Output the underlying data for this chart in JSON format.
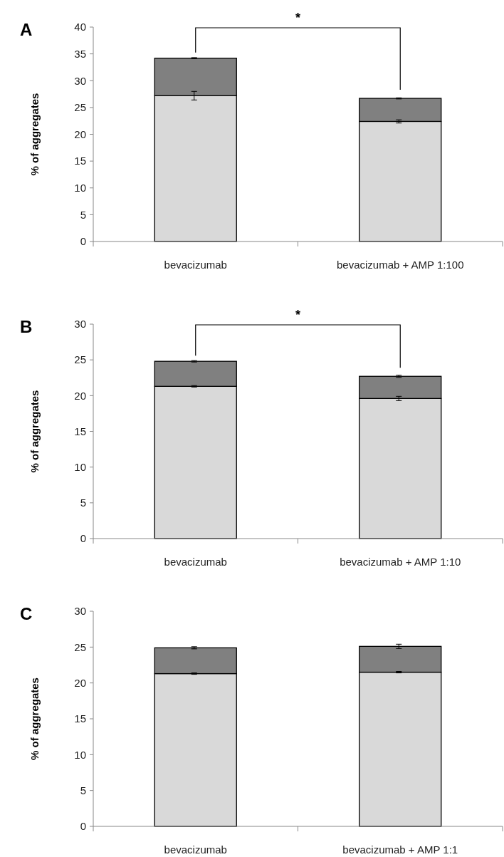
{
  "chart_data": [
    {
      "type": "bar",
      "title": "A",
      "ylabel": "% of aggregates",
      "categories": [
        "bevacizumab",
        "bevacizumab + AMP 1:100"
      ],
      "stacked": true,
      "ylim": [
        0,
        40
      ],
      "yticks": [
        0,
        5,
        10,
        15,
        20,
        25,
        30,
        35,
        40
      ],
      "grid": false,
      "annotations": [
        "*"
      ],
      "series": [
        {
          "color": "#d9d9d9",
          "values": [
            27.2,
            22.4
          ],
          "errors": [
            0.8,
            0.3
          ]
        },
        {
          "color": "#808080",
          "values": [
            7.0,
            4.3
          ],
          "errors": [
            0.1,
            0.1
          ]
        }
      ]
    },
    {
      "type": "bar",
      "title": "B",
      "ylabel": "% of aggregates",
      "categories": [
        "bevacizumab",
        "bevacizumab + AMP 1:10"
      ],
      "stacked": true,
      "ylim": [
        0,
        30
      ],
      "yticks": [
        0,
        5,
        10,
        15,
        20,
        25,
        30
      ],
      "grid": false,
      "annotations": [
        "*"
      ],
      "series": [
        {
          "color": "#d9d9d9",
          "values": [
            21.3,
            19.6
          ],
          "errors": [
            0.1,
            0.3
          ]
        },
        {
          "color": "#808080",
          "values": [
            3.5,
            3.1
          ],
          "errors": [
            0.1,
            0.15
          ]
        }
      ]
    },
    {
      "type": "bar",
      "title": "C",
      "ylabel": "% of aggregates",
      "categories": [
        "bevacizumab",
        "bevacizumab + AMP 1:1"
      ],
      "stacked": true,
      "ylim": [
        0,
        30
      ],
      "yticks": [
        0,
        5,
        10,
        15,
        20,
        25,
        30
      ],
      "grid": false,
      "series": [
        {
          "color": "#d9d9d9",
          "values": [
            21.3,
            21.5
          ],
          "errors": [
            0.1,
            0.1
          ]
        },
        {
          "color": "#808080",
          "values": [
            3.6,
            3.6
          ],
          "errors": [
            0.15,
            0.3
          ]
        }
      ]
    }
  ]
}
